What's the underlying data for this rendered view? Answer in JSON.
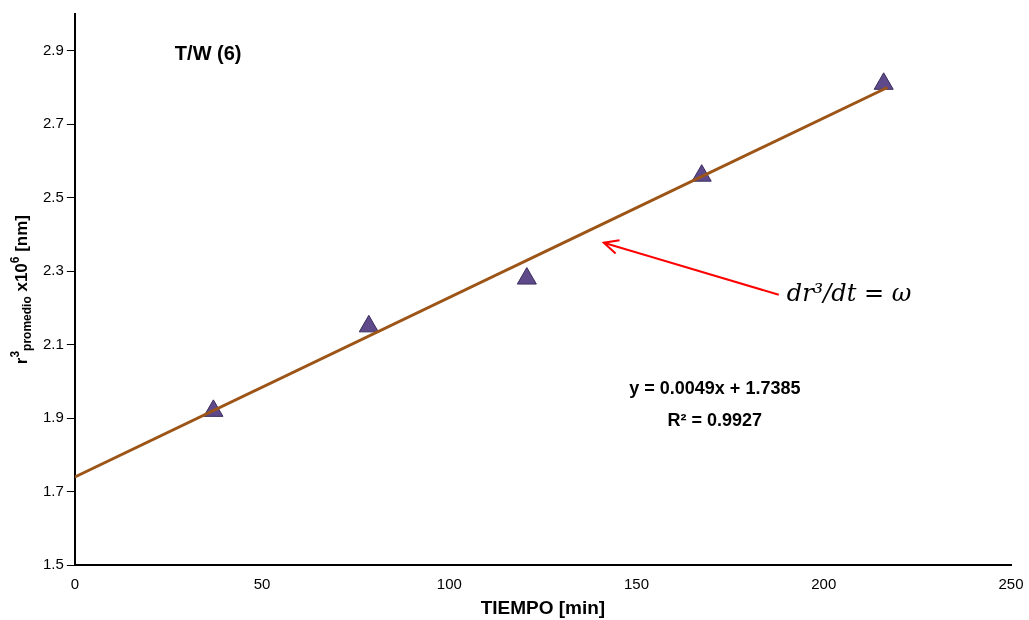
{
  "chart_data": {
    "type": "scatter",
    "xlabel": "TIEMPO [min]",
    "ylabel": "r$^{3}$$_{promedio}$ x10$^{6}$ [nm]",
    "xlim": [
      0,
      250
    ],
    "xticks": [
      0,
      50,
      100,
      150,
      200,
      250
    ],
    "ylim": [
      1.5,
      3.0
    ],
    "yticks": [
      1.5,
      1.7,
      1.9,
      2.1,
      2.3,
      2.5,
      2.7,
      2.9
    ],
    "grid": false,
    "legend": false,
    "series": [
      {
        "marker": "triangle",
        "color": "#5e4a8a",
        "x": [
          37,
          78.5,
          120.7,
          167.4,
          216
        ],
        "values": [
          1.92,
          2.15,
          2.28,
          2.56,
          2.81
        ]
      },
      {
        "type": "line",
        "marker": "none",
        "line_style": "solid",
        "color": "#9c5516",
        "x": [
          0,
          217
        ],
        "values": [
          1.74,
          2.8
        ]
      }
    ],
    "annotations": [
      "T/W (6)",
      "y = 0.0049x + 1.7385",
      "R² = 0.9927",
      "dr³/dt = ω"
    ]
  }
}
